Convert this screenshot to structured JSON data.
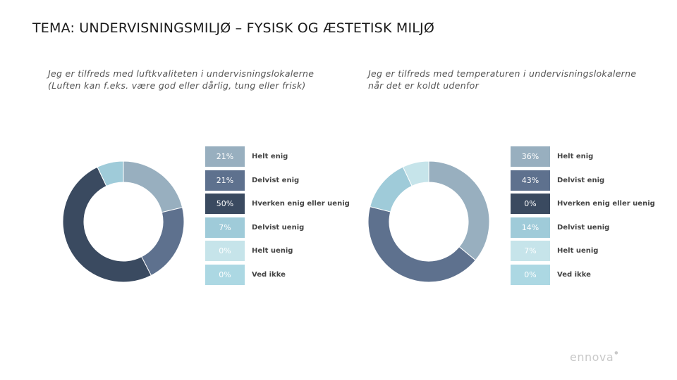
{
  "page_title": "TEMA: UNDERVISNINGSMILJØ – FYSISK OG ÆSTETISK MILJØ",
  "categories": [
    "Helt enig",
    "Delvist enig",
    "Hverken enig eller uenig",
    "Delvist uenig",
    "Helt uenig",
    "Ved ikke"
  ],
  "colors": [
    "#98afbf",
    "#5e718e",
    "#3a4a60",
    "#9fcbd9",
    "#c6e4ea",
    "#acd8e3"
  ],
  "chart_data": [
    {
      "type": "pie",
      "title_lines": [
        "Jeg er tilfreds med luftkvaliteten i undervisningslokalerne",
        "(Luften kan f.eks. være god eller dårlig, tung eller frisk)"
      ],
      "categories": [
        "Helt enig",
        "Delvist enig",
        "Hverken enig eller uenig",
        "Delvist uenig",
        "Helt uenig",
        "Ved ikke"
      ],
      "values": [
        21,
        21,
        50,
        7,
        0,
        0
      ],
      "labels": [
        "21%",
        "21%",
        "50%",
        "7%",
        "0%",
        "0%"
      ]
    },
    {
      "type": "pie",
      "title_lines": [
        "Jeg er tilfreds med temperaturen i undervisningslokalerne",
        "når det er koldt udenfor"
      ],
      "categories": [
        "Helt enig",
        "Delvist enig",
        "Hverken enig eller uenig",
        "Delvist uenig",
        "Helt uenig",
        "Ved ikke"
      ],
      "values": [
        36,
        43,
        0,
        14,
        7,
        0
      ],
      "labels": [
        "36%",
        "43%",
        "0%",
        "14%",
        "7%",
        "0%"
      ]
    }
  ],
  "logo_text": "ennova"
}
